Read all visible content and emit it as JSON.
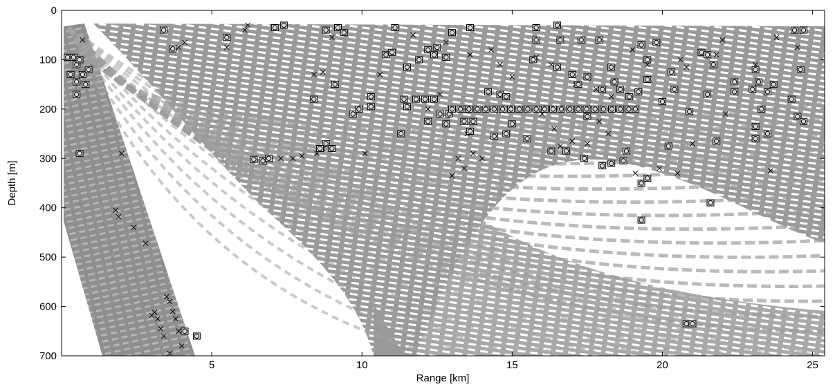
{
  "chart_data": {
    "type": "scatter",
    "xlabel": "Range [km]",
    "ylabel": "Depth [m]",
    "xlim": [
      0,
      25.4
    ],
    "ylim": [
      0,
      700
    ],
    "y_inverted": true,
    "xticks": [
      5,
      10,
      15,
      20,
      25
    ],
    "yticks": [
      0,
      100,
      200,
      300,
      400,
      500,
      600,
      700
    ],
    "series": [
      {
        "marker": "x",
        "color": "#000000",
        "x": [
          0.7,
          2.0,
          1.8,
          1.9,
          2.4,
          2.8,
          3.1,
          3.2,
          3.3,
          3.4,
          3.5,
          3.6,
          3.7,
          3.8,
          3.9,
          4.0,
          3.6,
          3.0,
          6.1,
          6.2,
          5.5,
          4.1,
          3.9,
          7.3,
          7.7,
          8.0,
          8.5,
          8.7,
          8.4,
          8.7,
          9.0,
          11.7,
          12.8,
          13.6,
          14.3,
          14.6,
          15.0,
          15.8,
          16.3,
          17.1,
          17.8,
          18.3,
          19.0,
          19.5,
          19.9,
          20.5,
          20.8,
          22.0,
          23.1,
          23.8,
          24.5,
          23.6,
          13.2,
          13.0,
          13.4,
          13.7,
          13.5,
          14.0,
          17.5,
          17.0,
          16.6,
          16.4,
          19.1,
          21.0,
          22.1,
          20.6,
          21.8,
          16.0,
          17.9,
          18.2,
          12.2,
          12.6,
          10.1,
          10.6
        ],
        "y": [
          60,
          290,
          405,
          418,
          440,
          472,
          612,
          625,
          645,
          660,
          580,
          590,
          610,
          625,
          650,
          680,
          695,
          618,
          40,
          30,
          75,
          65,
          75,
          300,
          300,
          295,
          290,
          280,
          130,
          125,
          55,
          50,
          65,
          90,
          80,
          110,
          135,
          95,
          110,
          150,
          160,
          175,
          80,
          110,
          320,
          330,
          115,
          60,
          110,
          55,
          75,
          325,
          300,
          335,
          320,
          290,
          250,
          300,
          270,
          265,
          275,
          240,
          330,
          270,
          210,
          100,
          90,
          210,
          225,
          250,
          200,
          170,
          290,
          130
        ]
      },
      {
        "marker": "square-circle",
        "color": "#000000",
        "x": [
          0.2,
          0.4,
          0.5,
          0.6,
          0.3,
          0.5,
          0.7,
          0.8,
          0.5,
          0.9,
          0.6,
          3.4,
          3.7,
          5.5,
          7.1,
          7.4,
          8.8,
          9.2,
          9.4,
          9.1,
          8.4,
          9.7,
          9.9,
          10.3,
          10.8,
          11.0,
          11.1,
          11.5,
          11.9,
          12.2,
          12.4,
          12.5,
          12.8,
          13.0,
          13.6,
          11.4,
          11.8,
          12.1,
          12.4,
          11.5,
          12.6,
          12.2,
          11.3,
          13.4,
          13.7,
          13.6,
          12.8,
          14.2,
          14.6,
          14.8,
          14.4,
          14.8,
          15.0,
          15.5,
          16.3,
          16.8,
          15.8,
          16.5,
          15.8,
          16.6,
          17.3,
          17.9,
          15.7,
          16.5,
          17.0,
          17.5,
          17.2,
          17.5,
          17.4,
          18.0,
          18.3,
          18.7,
          18.8,
          18.0,
          18.4,
          18.6,
          18.3,
          18.9,
          19.2,
          19.5,
          19.5,
          19.3,
          19.8,
          19.1,
          20.0,
          20.4,
          20.3,
          20.9,
          20.2,
          19.3,
          19.5,
          19.3,
          21.6,
          20.8,
          21.0,
          21.3,
          21.5,
          21.7,
          21.5,
          21.8,
          22.4,
          22.4,
          23.0,
          23.1,
          23.1,
          23.1,
          23.5,
          23.2,
          23.7,
          23.3,
          23.5,
          24.3,
          24.6,
          24.5,
          24.7,
          24.7,
          24.4,
          4.1,
          4.5,
          6.7,
          6.9,
          6.4,
          8.8,
          9.0,
          8.6,
          10.3,
          12.9,
          13.5,
          13.0,
          13.28,
          13.56,
          13.84,
          14.12,
          14.4,
          14.68,
          14.96,
          15.24,
          15.52,
          15.8,
          16.08,
          16.36,
          16.64,
          16.92,
          17.2,
          17.48,
          17.76,
          18.04,
          18.32,
          18.6,
          18.88
        ],
        "y": [
          95,
          95,
          110,
          100,
          130,
          145,
          130,
          150,
          170,
          120,
          290,
          40,
          78,
          55,
          35,
          30,
          40,
          35,
          45,
          150,
          180,
          210,
          200,
          195,
          90,
          85,
          35,
          115,
          100,
          80,
          90,
          75,
          95,
          45,
          35,
          180,
          180,
          180,
          180,
          195,
          210,
          225,
          250,
          225,
          225,
          245,
          230,
          165,
          170,
          175,
          255,
          250,
          230,
          260,
          285,
          285,
          35,
          30,
          60,
          60,
          60,
          60,
          100,
          115,
          130,
          135,
          150,
          215,
          300,
          315,
          310,
          305,
          285,
          160,
          145,
          160,
          115,
          175,
          165,
          140,
          100,
          70,
          65,
          200,
          185,
          160,
          125,
          205,
          275,
          350,
          340,
          425,
          390,
          635,
          635,
          85,
          90,
          110,
          170,
          265,
          145,
          165,
          160,
          120,
          235,
          260,
          165,
          145,
          150,
          200,
          250,
          180,
          120,
          215,
          225,
          40,
          40,
          650,
          660,
          305,
          300,
          302,
          270,
          280,
          280,
          175,
          210,
          200,
          200,
          200,
          200,
          200,
          200,
          200,
          200,
          200,
          200,
          200,
          200,
          200,
          200,
          200,
          200,
          200,
          200,
          200,
          200,
          200,
          200,
          200
        ]
      }
    ]
  }
}
